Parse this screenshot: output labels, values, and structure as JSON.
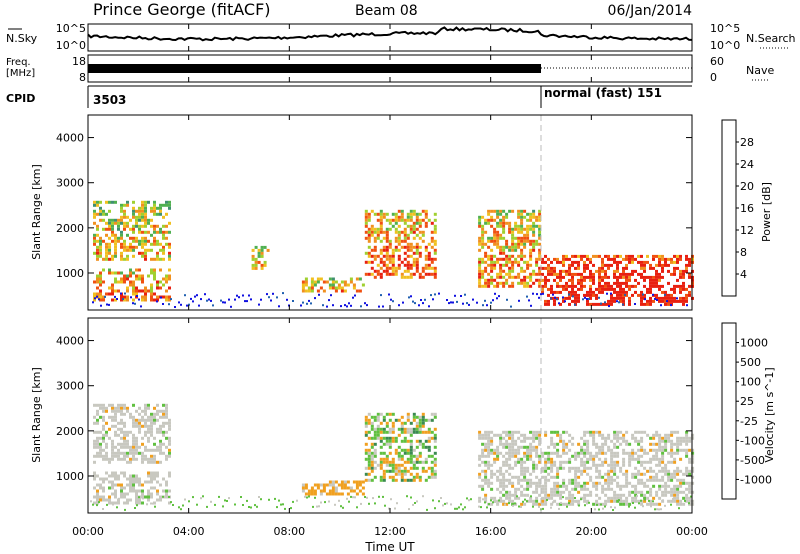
{
  "header": {
    "title": "Prince George (fitACF)",
    "beam": "Beam 08",
    "date": "06/Jan/2014"
  },
  "noise_panel": {
    "left_label": "N.Sky",
    "left_ticks": [
      "10^5",
      "10^0"
    ],
    "right_ticks": [
      "10^5",
      "10^0"
    ],
    "right_label": "N.Search"
  },
  "freq_panel": {
    "left_label_line1": "Freq.",
    "left_label_line2": "[MHz]",
    "left_ticks": [
      "18",
      "8"
    ],
    "right_ticks": [
      "60",
      "0"
    ],
    "right_label": "Nave"
  },
  "cpid_panel": {
    "label": "CPID",
    "cpid_first": "3503",
    "cpid_second": "normal (fast) 151",
    "switch_time_hours": 18.0
  },
  "time_axis": {
    "label": "Time UT",
    "tick_labels": [
      "00:00",
      "04:00",
      "08:00",
      "12:00",
      "16:00",
      "20:00",
      "00:00"
    ],
    "tick_hours": [
      0,
      4,
      8,
      12,
      16,
      20,
      24
    ],
    "range_hours": [
      0,
      24
    ]
  },
  "chart_data": [
    {
      "type": "heatmap",
      "quantity": "power",
      "ylabel": "Slant Range [km]",
      "ylim": [
        180,
        4500
      ],
      "y_ticks": [
        "1000",
        "2000",
        "3000",
        "4000"
      ],
      "colorbar_label": "Power [dB]",
      "colorbar_ticks": [
        "4",
        "8",
        "12",
        "16",
        "20",
        "24",
        "28"
      ],
      "colorbar_colors": [
        "#1010e0",
        "#2060b0",
        "#409070",
        "#50b050",
        "#a0d030",
        "#f0c020",
        "#f09020",
        "#f05010",
        "#e82010"
      ],
      "echo_regions": [
        {
          "t0": 0.2,
          "t1": 3.2,
          "r0": 400,
          "r1": 1100,
          "level": 0.6
        },
        {
          "t0": 0.2,
          "t1": 3.2,
          "r0": 1300,
          "r1": 2600,
          "level": 0.45
        },
        {
          "t0": 6.5,
          "t1": 7.2,
          "r0": 1100,
          "r1": 1600,
          "level": 0.5
        },
        {
          "t0": 8.5,
          "t1": 11.0,
          "r0": 600,
          "r1": 900,
          "level": 0.55
        },
        {
          "t0": 11.0,
          "t1": 13.8,
          "r0": 900,
          "r1": 2400,
          "level": 0.6
        },
        {
          "t0": 15.5,
          "t1": 18.0,
          "r0": 700,
          "r1": 2400,
          "level": 0.55
        },
        {
          "t0": 18.0,
          "t1": 24.0,
          "r0": 300,
          "r1": 1400,
          "level": 0.85
        }
      ]
    },
    {
      "type": "heatmap",
      "quantity": "velocity",
      "ylabel": "Slant Range [km]",
      "ylim": [
        180,
        4500
      ],
      "y_ticks": [
        "1000",
        "2000",
        "3000",
        "4000"
      ],
      "colorbar_label": "Velocity [m s^-1]",
      "colorbar_ticks": [
        "1000",
        "500",
        "100",
        "25",
        "-25",
        "-100",
        "-500",
        "-1000"
      ],
      "colorbar_colors": [
        "#1848c0",
        "#2e7bb0",
        "#3a8a50",
        "#60c040",
        "#c8c8c0",
        "#c8c8c0",
        "#f0a020",
        "#f07010",
        "#e82010"
      ],
      "echo_regions": [
        {
          "t0": 0.2,
          "t1": 3.2,
          "r0": 400,
          "r1": 1100,
          "class": "ground"
        },
        {
          "t0": 0.2,
          "t1": 3.2,
          "r0": 1300,
          "r1": 2600,
          "class": "ground"
        },
        {
          "t0": 8.5,
          "t1": 11.0,
          "r0": 600,
          "r1": 900,
          "class": "negative"
        },
        {
          "t0": 11.0,
          "t1": 13.8,
          "r0": 900,
          "r1": 2400,
          "class": "mixed"
        },
        {
          "t0": 15.5,
          "t1": 24.0,
          "r0": 400,
          "r1": 2000,
          "class": "ground"
        }
      ]
    }
  ]
}
